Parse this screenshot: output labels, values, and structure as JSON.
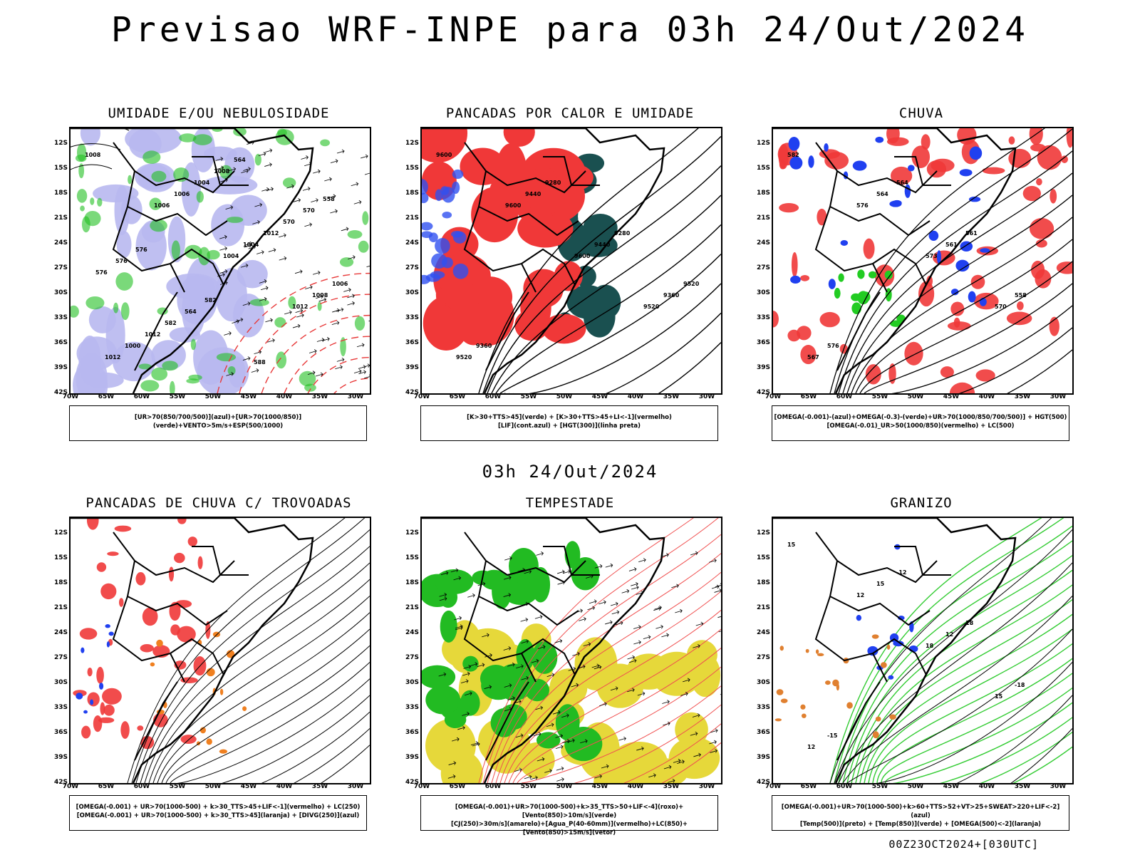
{
  "page": {
    "title": "Previsao WRF-INPE  para 03h 24/Out/2024",
    "mid_date": "03h 24/Out/2024",
    "run_label": "00Z23OCT2024+[030UTC]"
  },
  "axes": {
    "lat_labels": [
      "12S",
      "15S",
      "18S",
      "21S",
      "24S",
      "27S",
      "30S",
      "33S",
      "36S",
      "39S",
      "42S"
    ],
    "lon_labels": [
      "70W",
      "65W",
      "60W",
      "55W",
      "50W",
      "45W",
      "40W",
      "35W",
      "30W"
    ]
  },
  "panels": [
    {
      "id": "umidade",
      "title": "UMIDADE E/OU NEBULOSIDADE",
      "legend": [
        "[UR>70(850/700/500)](azul)+[UR>70(1000/850)](verde)+VENTO>5m/s+ESP(500/1000)"
      ],
      "contour_labels": [
        "1008",
        "1006",
        "1004",
        "1012",
        "1012",
        "1006",
        "1004",
        "1008",
        "1000",
        "1004",
        "1012",
        "1006",
        "1012",
        "1008",
        "570",
        "576",
        "582",
        "564",
        "570",
        "576",
        "564",
        "588",
        "558",
        "576",
        "582"
      ],
      "colors": {
        "rh_upper": "#b8b8f0",
        "rh_lower": "#22c022",
        "thickness": "#e83a3a",
        "pressure": "#000000"
      }
    },
    {
      "id": "pancadas_calor",
      "title": "PANCADAS POR CALOR E UMIDADE",
      "legend": [
        "[K>30+TTS>45](verde) + [K>30+TTS>45+LI<-1](vermelho)",
        "[LIF](cont.azul) + [HGT(300)](linha preta)"
      ],
      "contour_labels": [
        "9600",
        "9600",
        "9600",
        "9520",
        "9520",
        "9440",
        "9440",
        "9360",
        "9360",
        "9280",
        "9280",
        "9520"
      ],
      "colors": {
        "k_tts": "#1a5050",
        "k_tts_li": "#f03838",
        "lif": "#3050f0",
        "hgt": "#000000"
      }
    },
    {
      "id": "chuva",
      "title": "CHUVA",
      "legend": [
        "[OMEGA(-0.001)-(azul)+OMEGA(-0.3)-(verde)+UR>70(1000/850/700/500)] + HGT(500)",
        "[OMEGA(-0.01)_UR>50(1000/850)(vermelho) + LC(500)"
      ],
      "contour_labels": [
        "582",
        "576",
        "573",
        "570",
        "567",
        "564",
        "561",
        "558",
        "576",
        "564",
        "561"
      ],
      "colors": {
        "omega_blue": "#2040f0",
        "omega_green": "#22cc22",
        "omega_red": "#f03838",
        "hgt": "#000000"
      }
    },
    {
      "id": "pancadas_trovoadas",
      "title": "PANCADAS DE CHUVA C/ TROVOADAS",
      "legend": [
        "[OMEGA(-0.001) + UR>70(1000-500) + k>30_TTS>45+LIF<-1](vermelho) + LC(250)",
        "[OMEGA(-0.001) + UR>70(1000-500) + k>30_TTS>45](laranja) + [DIVG(250)](azul)"
      ],
      "contour_labels": [],
      "colors": {
        "red": "#f03838",
        "orange": "#f08020",
        "blue": "#2040f0",
        "lc": "#000000"
      }
    },
    {
      "id": "tempestade",
      "title": "TEMPESTADE",
      "legend": [
        "[OMEGA(-0.001)+UR>70(1000-500)+k>35_TTS>50+LIF<-4](roxo)+[Vento(850)>10m/s](verde)",
        "[CJ(250)>30m/s](amarelo)+[Agua_P(40-60mm)](vermelho)+LC(850)+[Vento(850)>15m/s](vetor)"
      ],
      "contour_labels": [],
      "colors": {
        "jet": "#e6d83a",
        "wind850": "#22bb22",
        "agua": "#f05050",
        "purple": "#9020c0"
      }
    },
    {
      "id": "granizo",
      "title": "GRANIZO",
      "legend": [
        "[OMEGA(-0.001)+UR>70(1000-500)+k>60+TTS>52+VT>25+SWEAT>220+LIF<-2](azul)",
        "[Temp(500)](preto) + [Temp(850)](verde) + [OMEGA(500)<-2](laranja)"
      ],
      "contour_labels": [
        "15",
        "12",
        "18",
        "15",
        "12",
        "15",
        "12",
        "-18",
        "-15",
        "-12",
        "18"
      ],
      "colors": {
        "temp850": "#33cc33",
        "blue": "#2040f0",
        "orange": "#e08030",
        "temp500": "#000000"
      }
    }
  ]
}
